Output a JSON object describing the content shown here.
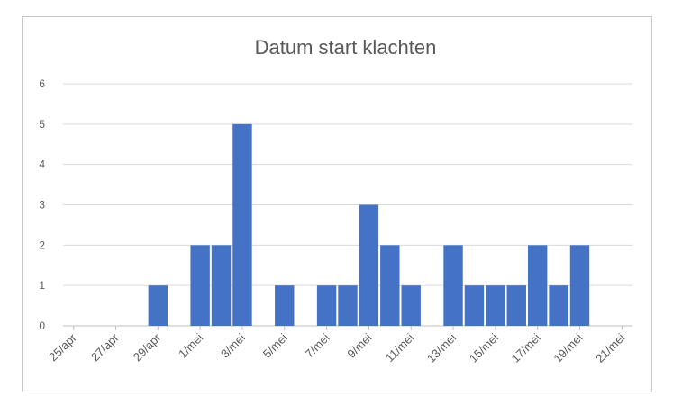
{
  "chart_data": {
    "type": "bar",
    "title": "Datum start klachten",
    "xlabel": "",
    "ylabel": "",
    "ylim": [
      0,
      6
    ],
    "yticks": [
      "0",
      "1",
      "2",
      "3",
      "4",
      "5",
      "6"
    ],
    "grid": true,
    "color": "#4472c4",
    "categories": [
      "25/apr",
      "26/apr",
      "27/apr",
      "28/apr",
      "29/apr",
      "30/apr",
      "1/mei",
      "2/mei",
      "3/mei",
      "4/mei",
      "5/mei",
      "6/mei",
      "7/mei",
      "8/mei",
      "9/mei",
      "10/mei",
      "11/mei",
      "12/mei",
      "13/mei",
      "14/mei",
      "15/mei",
      "16/mei",
      "17/mei",
      "18/mei",
      "19/mei",
      "20/mei",
      "21/mei"
    ],
    "tick_labels": [
      "25/apr",
      "27/apr",
      "29/apr",
      "1/mei",
      "3/mei",
      "5/mei",
      "7/mei",
      "9/mei",
      "11/mei",
      "13/mei",
      "15/mei",
      "17/mei",
      "19/mei",
      "21/mei"
    ],
    "values": [
      0,
      0,
      0,
      0,
      1,
      0,
      2,
      2,
      5,
      0,
      1,
      0,
      1,
      1,
      3,
      2,
      1,
      0,
      2,
      1,
      1,
      1,
      2,
      1,
      2,
      0,
      0
    ]
  }
}
